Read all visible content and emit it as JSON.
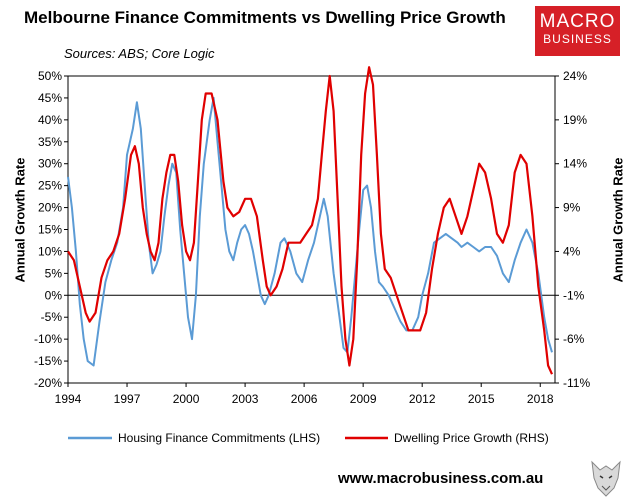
{
  "header": {
    "title": "Melbourne Finance Commitments vs Dwelling Price Growth",
    "subtitle": "Sources: ABS; Core Logic",
    "logo_line1": "MACRO",
    "logo_line2": "BUSINESS"
  },
  "footer": {
    "website": "www.macrobusiness.com.au"
  },
  "colors": {
    "lhs_series": "#5b9bd5",
    "rhs_series": "#e00000",
    "logo_bg": "#d62027"
  },
  "chart_data": {
    "type": "line",
    "ylabel_left": "Annual Growth Rate",
    "ylabel_right": "Annual Growth Rate",
    "xlim": [
      1994,
      2018.75
    ],
    "ylim_left": [
      -20,
      50
    ],
    "ylim_right": [
      -11,
      24
    ],
    "x_ticks": [
      "1994",
      "1997",
      "2000",
      "2003",
      "2006",
      "2009",
      "2012",
      "2015",
      "2018"
    ],
    "y_ticks_left": [
      "50%",
      "45%",
      "40%",
      "35%",
      "30%",
      "25%",
      "20%",
      "15%",
      "10%",
      "5%",
      "0%",
      "-5%",
      "-10%",
      "-15%",
      "-20%"
    ],
    "y_ticks_right": [
      "24%",
      "19%",
      "14%",
      "9%",
      "4%",
      "-1%",
      "-6%",
      "-11%"
    ],
    "legend_position": "bottom",
    "grid": false,
    "series": [
      {
        "name": "Housing Finance Commitments (LHS)",
        "axis": "left",
        "points": [
          [
            1994.0,
            27
          ],
          [
            1994.2,
            20
          ],
          [
            1994.4,
            10
          ],
          [
            1994.6,
            -2
          ],
          [
            1994.8,
            -10
          ],
          [
            1995.0,
            -15
          ],
          [
            1995.3,
            -16
          ],
          [
            1995.6,
            -6
          ],
          [
            1995.9,
            3
          ],
          [
            1996.2,
            8
          ],
          [
            1996.5,
            12
          ],
          [
            1996.8,
            20
          ],
          [
            1997.0,
            32
          ],
          [
            1997.3,
            38
          ],
          [
            1997.5,
            44
          ],
          [
            1997.7,
            38
          ],
          [
            1997.9,
            25
          ],
          [
            1998.1,
            12
          ],
          [
            1998.3,
            5
          ],
          [
            1998.5,
            7
          ],
          [
            1998.7,
            10
          ],
          [
            1998.9,
            18
          ],
          [
            1999.1,
            25
          ],
          [
            1999.3,
            30
          ],
          [
            1999.5,
            28
          ],
          [
            1999.7,
            15
          ],
          [
            1999.9,
            5
          ],
          [
            2000.1,
            -5
          ],
          [
            2000.3,
            -10
          ],
          [
            2000.5,
            0
          ],
          [
            2000.7,
            18
          ],
          [
            2000.9,
            30
          ],
          [
            2001.2,
            40
          ],
          [
            2001.4,
            45
          ],
          [
            2001.6,
            35
          ],
          [
            2001.8,
            25
          ],
          [
            2002.0,
            15
          ],
          [
            2002.2,
            10
          ],
          [
            2002.4,
            8
          ],
          [
            2002.6,
            12
          ],
          [
            2002.8,
            15
          ],
          [
            2003.0,
            16
          ],
          [
            2003.2,
            14
          ],
          [
            2003.4,
            10
          ],
          [
            2003.6,
            5
          ],
          [
            2003.8,
            0
          ],
          [
            2004.0,
            -2
          ],
          [
            2004.2,
            0
          ],
          [
            2004.5,
            5
          ],
          [
            2004.8,
            12
          ],
          [
            2005.0,
            13
          ],
          [
            2005.3,
            10
          ],
          [
            2005.6,
            5
          ],
          [
            2005.9,
            3
          ],
          [
            2006.2,
            8
          ],
          [
            2006.5,
            12
          ],
          [
            2006.8,
            18
          ],
          [
            2007.0,
            22
          ],
          [
            2007.2,
            18
          ],
          [
            2007.5,
            5
          ],
          [
            2007.8,
            -5
          ],
          [
            2008.0,
            -12
          ],
          [
            2008.2,
            -13
          ],
          [
            2008.4,
            -5
          ],
          [
            2008.6,
            5
          ],
          [
            2008.8,
            15
          ],
          [
            2009.0,
            24
          ],
          [
            2009.2,
            25
          ],
          [
            2009.4,
            20
          ],
          [
            2009.6,
            10
          ],
          [
            2009.8,
            3
          ],
          [
            2010.0,
            2
          ],
          [
            2010.3,
            0
          ],
          [
            2010.6,
            -3
          ],
          [
            2010.9,
            -6
          ],
          [
            2011.2,
            -8
          ],
          [
            2011.5,
            -8
          ],
          [
            2011.8,
            -5
          ],
          [
            2012.0,
            0
          ],
          [
            2012.3,
            5
          ],
          [
            2012.6,
            12
          ],
          [
            2012.9,
            13
          ],
          [
            2013.2,
            14
          ],
          [
            2013.5,
            13
          ],
          [
            2013.8,
            12
          ],
          [
            2014.0,
            11
          ],
          [
            2014.3,
            12
          ],
          [
            2014.6,
            11
          ],
          [
            2014.9,
            10
          ],
          [
            2015.2,
            11
          ],
          [
            2015.5,
            11
          ],
          [
            2015.8,
            9
          ],
          [
            2016.1,
            5
          ],
          [
            2016.4,
            3
          ],
          [
            2016.7,
            8
          ],
          [
            2017.0,
            12
          ],
          [
            2017.3,
            15
          ],
          [
            2017.6,
            12
          ],
          [
            2017.9,
            5
          ],
          [
            2018.2,
            -5
          ],
          [
            2018.4,
            -10
          ],
          [
            2018.6,
            -13
          ]
        ]
      },
      {
        "name": "Dwelling Price Growth (RHS)",
        "axis": "right",
        "points": [
          [
            1994.0,
            4
          ],
          [
            1994.3,
            3
          ],
          [
            1994.6,
            0
          ],
          [
            1994.9,
            -3
          ],
          [
            1995.1,
            -4
          ],
          [
            1995.4,
            -3
          ],
          [
            1995.7,
            1
          ],
          [
            1996.0,
            3
          ],
          [
            1996.3,
            4
          ],
          [
            1996.6,
            6
          ],
          [
            1996.9,
            10
          ],
          [
            1997.2,
            15
          ],
          [
            1997.4,
            16
          ],
          [
            1997.6,
            14
          ],
          [
            1997.8,
            9
          ],
          [
            1998.0,
            6
          ],
          [
            1998.2,
            4
          ],
          [
            1998.4,
            3
          ],
          [
            1998.6,
            5
          ],
          [
            1998.8,
            10
          ],
          [
            1999.0,
            13
          ],
          [
            1999.2,
            15
          ],
          [
            1999.4,
            15
          ],
          [
            1999.6,
            12
          ],
          [
            1999.8,
            7
          ],
          [
            2000.0,
            4
          ],
          [
            2000.2,
            3
          ],
          [
            2000.4,
            5
          ],
          [
            2000.6,
            12
          ],
          [
            2000.8,
            19
          ],
          [
            2001.0,
            22
          ],
          [
            2001.3,
            22
          ],
          [
            2001.6,
            19
          ],
          [
            2001.9,
            12
          ],
          [
            2002.1,
            9
          ],
          [
            2002.4,
            8
          ],
          [
            2002.7,
            8.5
          ],
          [
            2003.0,
            10
          ],
          [
            2003.3,
            10
          ],
          [
            2003.6,
            8
          ],
          [
            2003.9,
            3
          ],
          [
            2004.1,
            0
          ],
          [
            2004.3,
            -1
          ],
          [
            2004.6,
            0
          ],
          [
            2004.9,
            2
          ],
          [
            2005.2,
            5
          ],
          [
            2005.5,
            5
          ],
          [
            2005.8,
            5
          ],
          [
            2006.1,
            6
          ],
          [
            2006.4,
            7
          ],
          [
            2006.7,
            10
          ],
          [
            2006.9,
            15
          ],
          [
            2007.1,
            20
          ],
          [
            2007.3,
            24
          ],
          [
            2007.5,
            20
          ],
          [
            2007.7,
            10
          ],
          [
            2007.9,
            0
          ],
          [
            2008.1,
            -6
          ],
          [
            2008.3,
            -9
          ],
          [
            2008.5,
            -6
          ],
          [
            2008.7,
            3
          ],
          [
            2008.9,
            15
          ],
          [
            2009.1,
            22
          ],
          [
            2009.3,
            25
          ],
          [
            2009.5,
            23
          ],
          [
            2009.7,
            15
          ],
          [
            2009.9,
            6
          ],
          [
            2010.1,
            2
          ],
          [
            2010.4,
            1
          ],
          [
            2010.7,
            -1
          ],
          [
            2011.0,
            -3
          ],
          [
            2011.3,
            -5
          ],
          [
            2011.6,
            -5
          ],
          [
            2011.9,
            -5
          ],
          [
            2012.2,
            -3
          ],
          [
            2012.5,
            2
          ],
          [
            2012.8,
            6
          ],
          [
            2013.1,
            9
          ],
          [
            2013.4,
            10
          ],
          [
            2013.7,
            8
          ],
          [
            2014.0,
            6
          ],
          [
            2014.3,
            8
          ],
          [
            2014.6,
            11
          ],
          [
            2014.9,
            14
          ],
          [
            2015.2,
            13
          ],
          [
            2015.5,
            10
          ],
          [
            2015.8,
            6
          ],
          [
            2016.1,
            5
          ],
          [
            2016.4,
            7
          ],
          [
            2016.7,
            13
          ],
          [
            2017.0,
            15
          ],
          [
            2017.3,
            14
          ],
          [
            2017.6,
            8
          ],
          [
            2017.9,
            0
          ],
          [
            2018.2,
            -5
          ],
          [
            2018.4,
            -9
          ],
          [
            2018.6,
            -10
          ]
        ]
      }
    ]
  }
}
